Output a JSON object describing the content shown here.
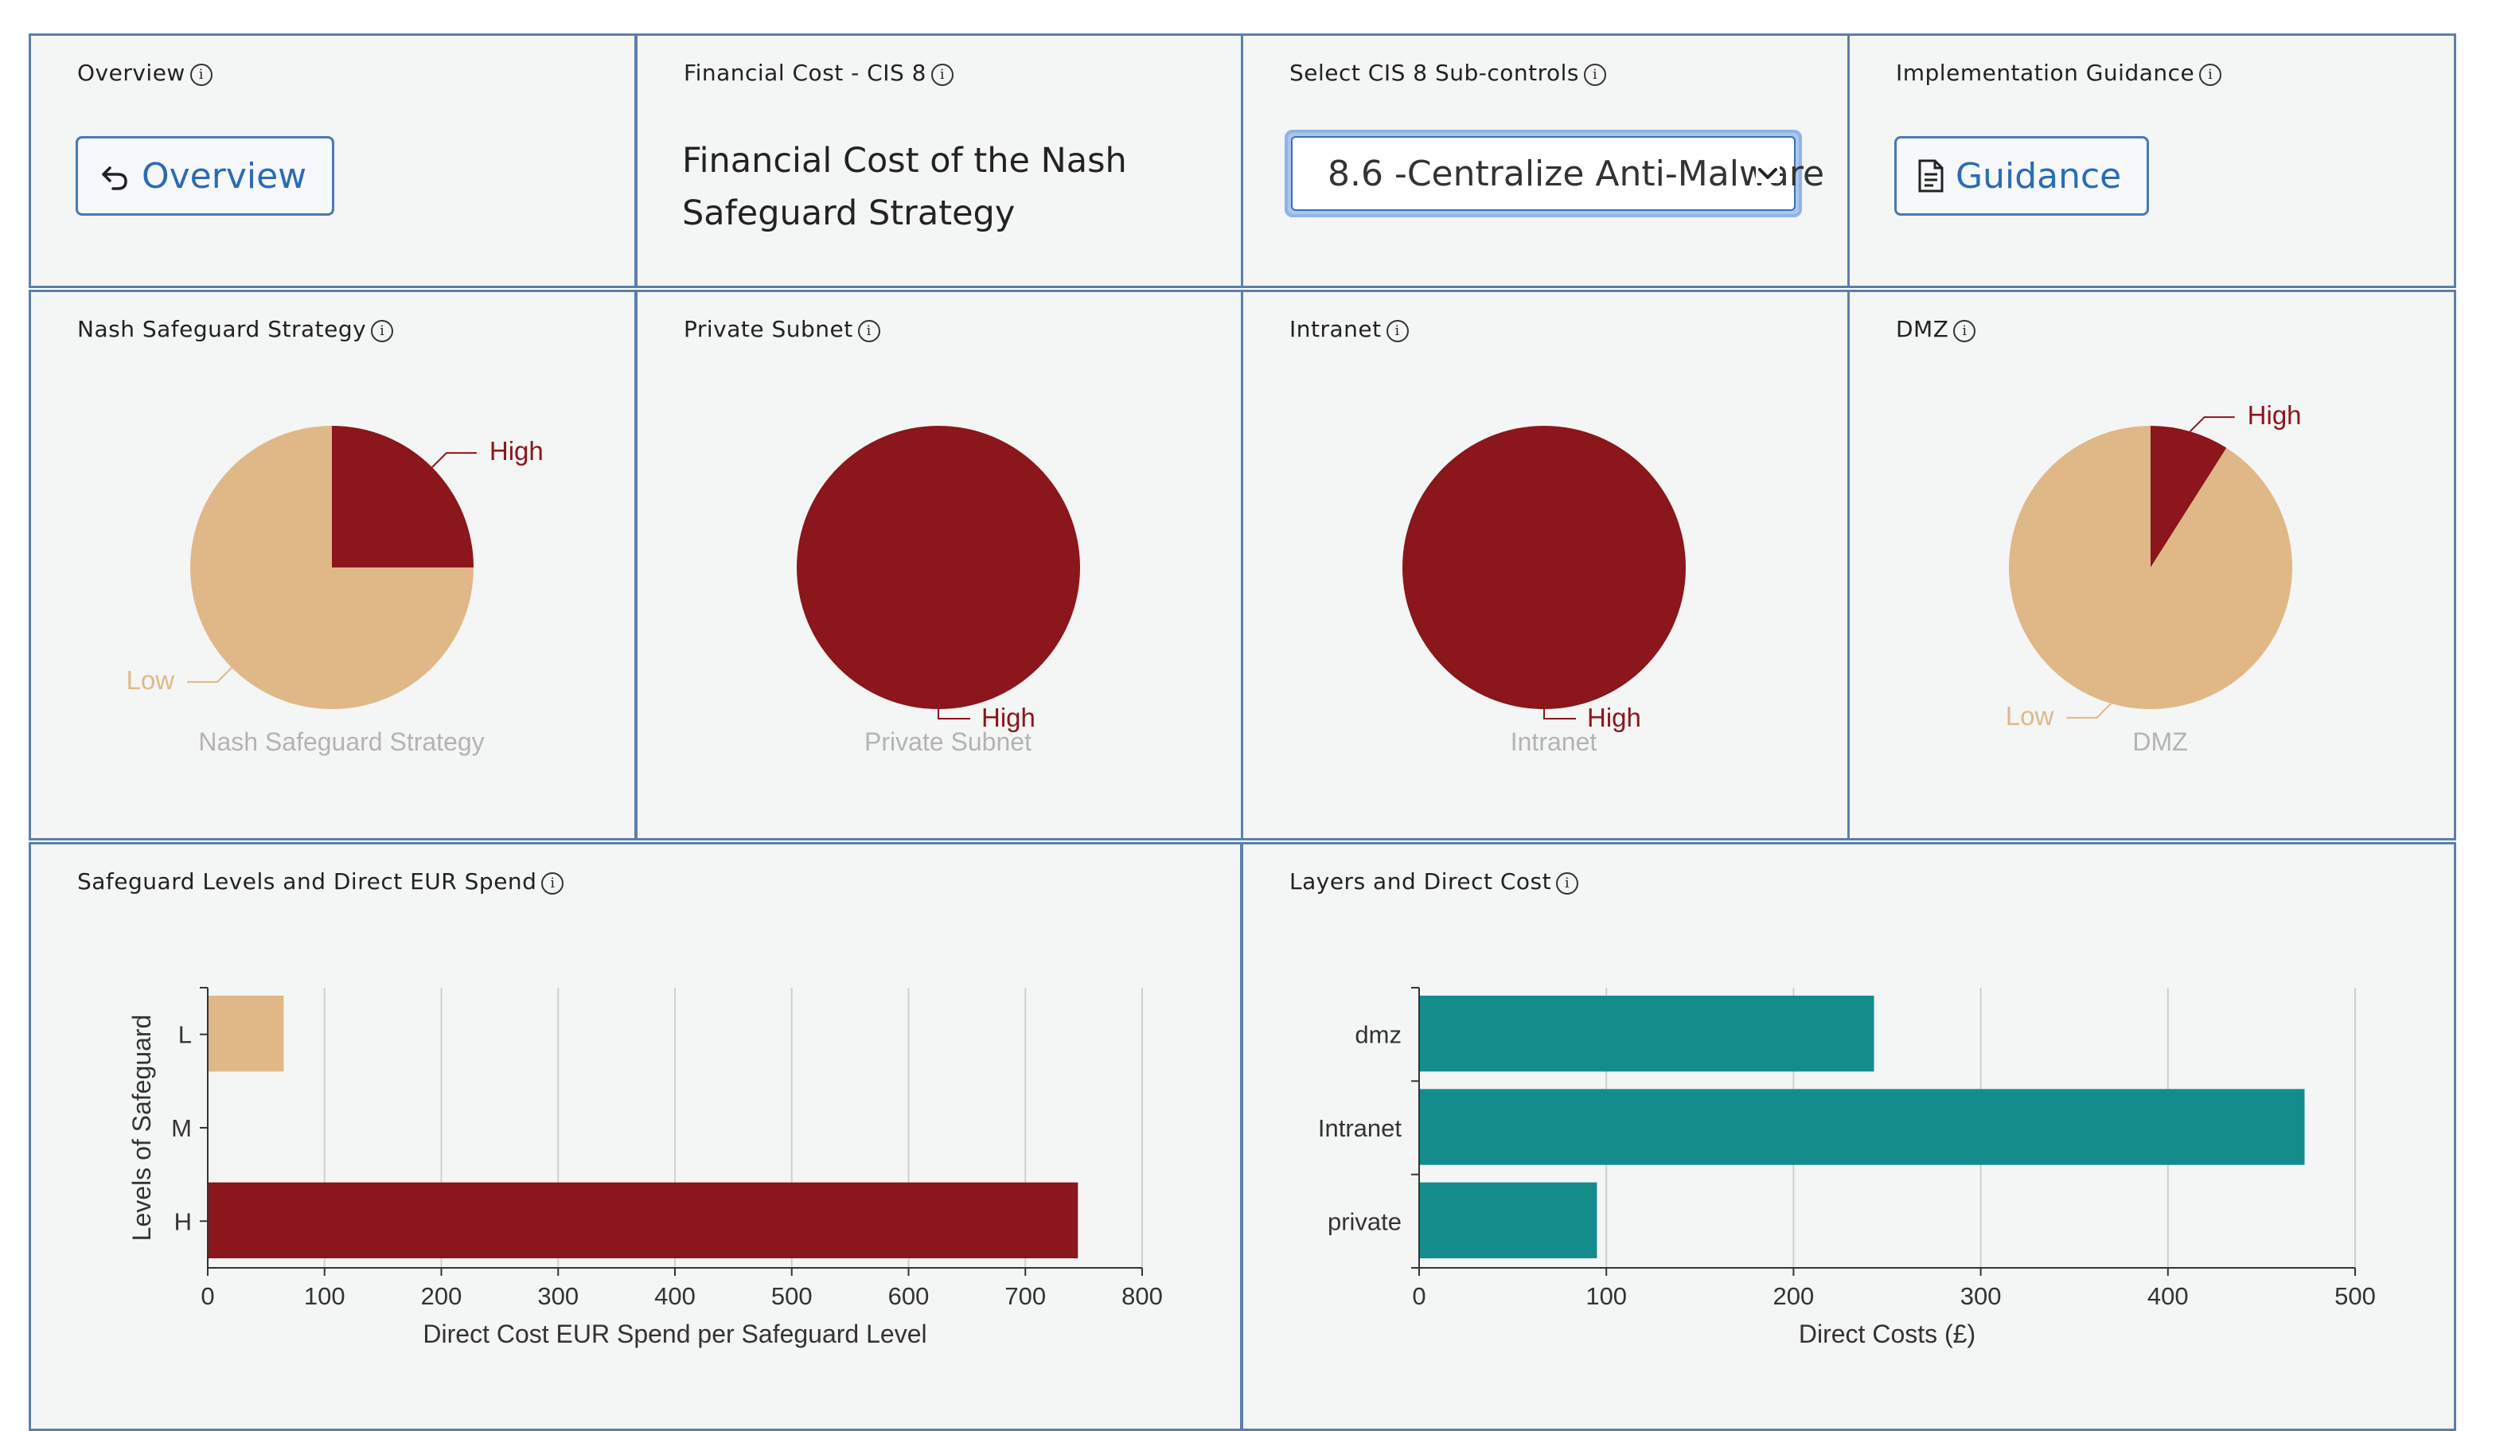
{
  "header": {
    "overview": {
      "title": "Overview",
      "button": "Overview"
    },
    "financial": {
      "title": "Financial Cost - CIS 8",
      "text": "Financial Cost of the Nash Safeguard Strategy"
    },
    "select": {
      "title": "Select CIS 8 Sub-controls",
      "value": "8.6 -Centralize Anti-Malware"
    },
    "guidance": {
      "title": "Implementation Guidance",
      "button": "Guidance"
    }
  },
  "pies": [
    {
      "title": "Nash Safeguard Strategy",
      "caption": "Nash Safeguard Strategy",
      "slices": [
        {
          "label": "High",
          "value": 25
        },
        {
          "label": "Low",
          "value": 75
        }
      ]
    },
    {
      "title": "Private Subnet",
      "caption": "Private Subnet",
      "slices": [
        {
          "label": "High",
          "value": 100
        }
      ]
    },
    {
      "title": "Intranet",
      "caption": "Intranet",
      "slices": [
        {
          "label": "High",
          "value": 100
        }
      ]
    },
    {
      "title": "DMZ",
      "caption": "DMZ",
      "slices": [
        {
          "label": "High",
          "value": 9
        },
        {
          "label": "Low",
          "value": 91
        }
      ]
    }
  ],
  "colors": {
    "High": "#8b161b",
    "Low": "#e0b887",
    "teal": "#148c8c",
    "border": "#5b7fab"
  },
  "chart_data": [
    {
      "type": "bar",
      "title": "Safeguard Levels and Direct EUR Spend",
      "categories": [
        "L",
        "M",
        "H"
      ],
      "values": [
        65,
        0,
        745
      ],
      "xlabel": "Direct Cost EUR Spend per Safeguard Level",
      "ylabel": "Levels of Safeguard",
      "xlim": [
        0,
        800
      ],
      "ticks": [
        0,
        100,
        200,
        300,
        400,
        500,
        600,
        700,
        800
      ],
      "grid": true
    },
    {
      "type": "bar",
      "title": "Layers and Direct Cost",
      "categories": [
        "dmz",
        "Intranet",
        "private"
      ],
      "values": [
        243,
        473,
        95
      ],
      "xlabel": "Direct Costs (£)",
      "ylabel": "",
      "xlim": [
        0,
        500
      ],
      "ticks": [
        0,
        100,
        200,
        300,
        400,
        500
      ],
      "grid": true
    }
  ]
}
